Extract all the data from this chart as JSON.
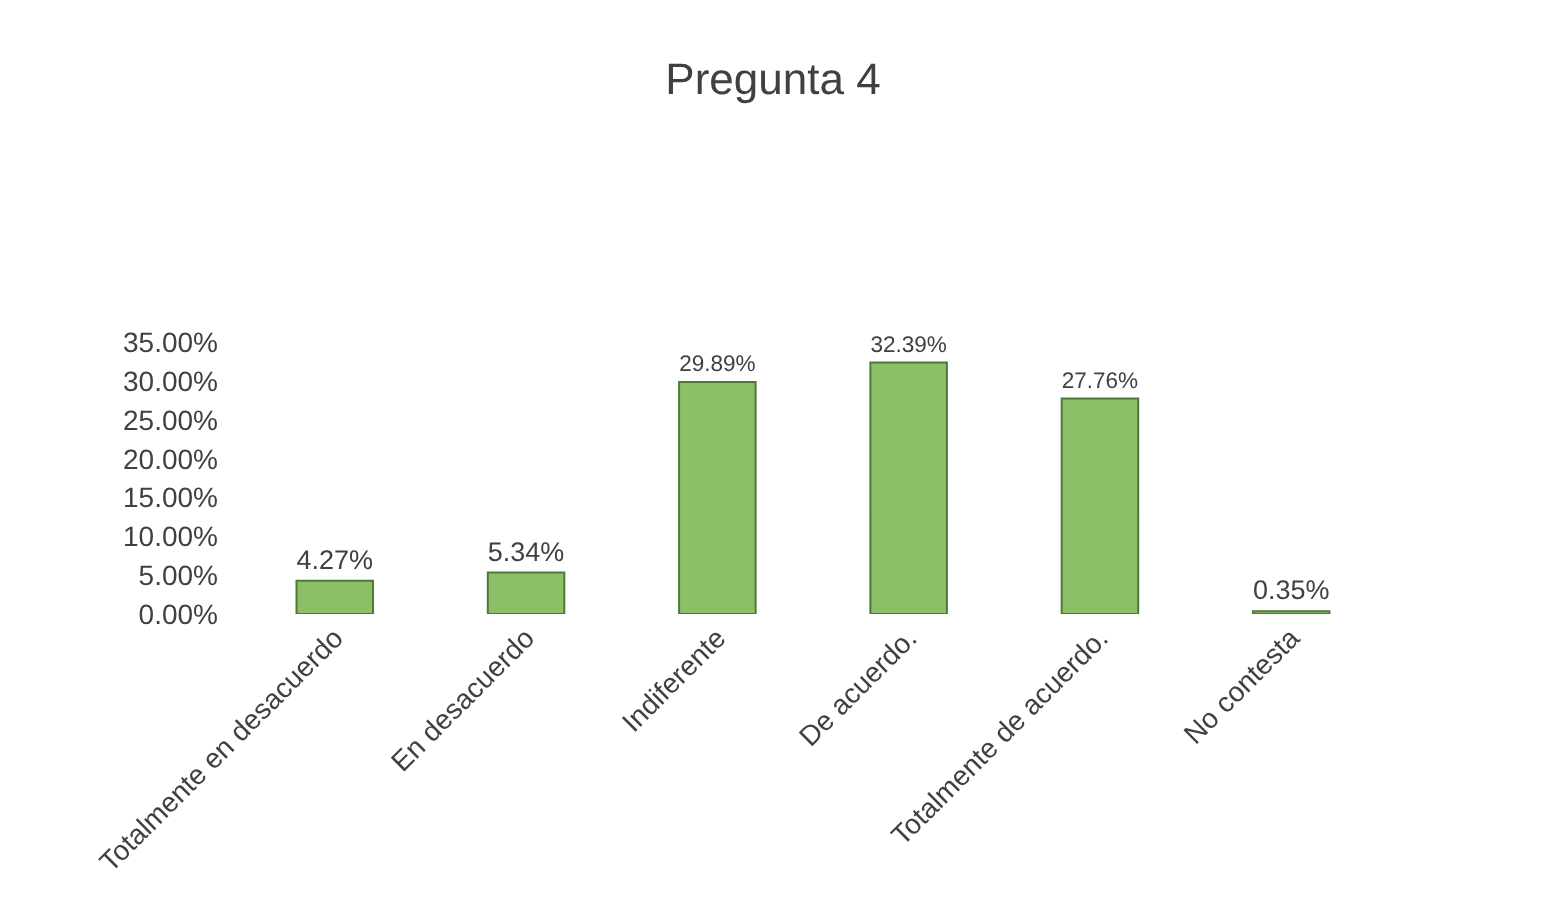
{
  "chart_data": {
    "type": "bar",
    "title": "Pregunta 4",
    "categories": [
      "Totalmente en desacuerdo",
      "En desacuerdo",
      "Indiferente",
      "De acuerdo.",
      "Totalmente de acuerdo.",
      "No contesta"
    ],
    "values": [
      4.27,
      5.34,
      29.89,
      32.39,
      27.76,
      0.35
    ],
    "value_labels": [
      "4.27%",
      "5.34%",
      "29.89%",
      "32.39%",
      "27.76%",
      "0.35%"
    ],
    "color": "#8cbf67",
    "ylim": [
      0,
      35
    ],
    "yticks": [
      {
        "value": 0,
        "label": "0.00%"
      },
      {
        "value": 5,
        "label": "5.00%"
      },
      {
        "value": 10,
        "label": "10.00%"
      },
      {
        "value": 15,
        "label": "15.00%"
      },
      {
        "value": 20,
        "label": "20.00%"
      },
      {
        "value": 25,
        "label": "25.00%"
      },
      {
        "value": 30,
        "label": "30.00%"
      },
      {
        "value": 35,
        "label": "35.00%"
      }
    ],
    "ylabel": null
  }
}
